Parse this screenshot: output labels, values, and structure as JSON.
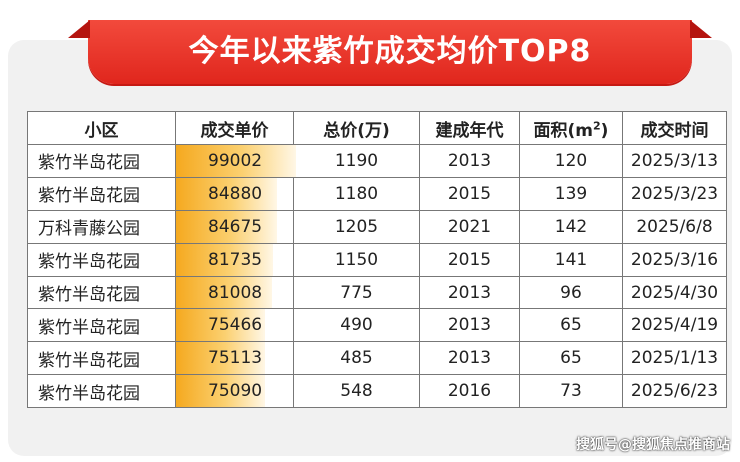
{
  "title": "今年以来紫竹成交均价TOP8",
  "columns": [
    "小区",
    "成交单价",
    "总价(万)",
    "建成年代",
    "面积(m",
    "成交时间"
  ],
  "area_sup": "2",
  "area_close": ")",
  "rows": [
    {
      "name": "紫竹半岛花园",
      "price": "99002",
      "price_value": 99002,
      "total": "1190",
      "year": "2013",
      "area": "120",
      "date": "2025/3/13"
    },
    {
      "name": "紫竹半岛花园",
      "price": "84880",
      "price_value": 84880,
      "total": "1180",
      "year": "2015",
      "area": "139",
      "date": "2025/3/23"
    },
    {
      "name": "万科青藤公园",
      "price": "84675",
      "price_value": 84675,
      "total": "1205",
      "year": "2021",
      "area": "142",
      "date": "2025/6/8"
    },
    {
      "name": "紫竹半岛花园",
      "price": "81735",
      "price_value": 81735,
      "total": "1150",
      "year": "2015",
      "area": "141",
      "date": "2025/3/16"
    },
    {
      "name": "紫竹半岛花园",
      "price": "81008",
      "price_value": 81008,
      "total": "775",
      "year": "2013",
      "area": "96",
      "date": "2025/4/30"
    },
    {
      "name": "紫竹半岛花园",
      "price": "75466",
      "price_value": 75466,
      "total": "490",
      "year": "2013",
      "area": "65",
      "date": "2025/4/19"
    },
    {
      "name": "紫竹半岛花园",
      "price": "75113",
      "price_value": 75113,
      "total": "485",
      "year": "2013",
      "area": "65",
      "date": "2025/1/13"
    },
    {
      "name": "紫竹半岛花园",
      "price": "75090",
      "price_value": 75090,
      "total": "548",
      "year": "2016",
      "area": "73",
      "date": "2025/6/23"
    }
  ],
  "watermark": "搜狐号@搜狐焦点推商站",
  "colors": {
    "banner": "#e0261d",
    "bar": "#f5a91f"
  }
}
